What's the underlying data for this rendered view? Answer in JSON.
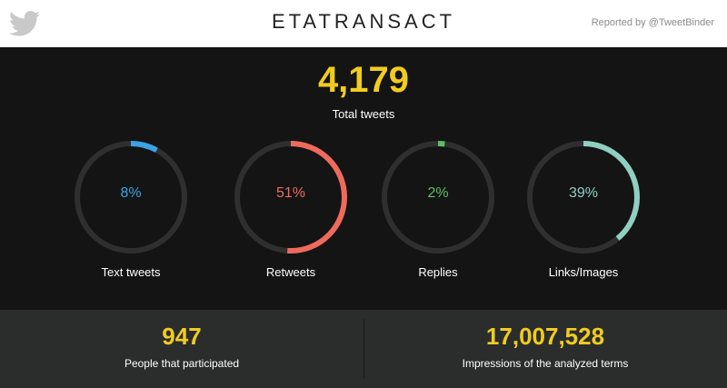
{
  "header": {
    "title": "ETATRANSACT",
    "reported_by": "Reported by @TweetBinder",
    "logo_icon": "twitter-bird-icon"
  },
  "total": {
    "value": "4,179",
    "label": "Total tweets"
  },
  "rings": [
    {
      "label": "Text tweets",
      "percent_text": "8%",
      "percent": 8,
      "color": "#3aa3e3"
    },
    {
      "label": "Retweets",
      "percent_text": "51%",
      "percent": 51,
      "color": "#ef6a5c"
    },
    {
      "label": "Replies",
      "percent_text": "2%",
      "percent": 2,
      "color": "#5cbf62"
    },
    {
      "label": "Links/Images",
      "percent_text": "39%",
      "percent": 39,
      "color": "#8fcfc2"
    }
  ],
  "stats": [
    {
      "value": "947",
      "label": "People that participated"
    },
    {
      "value": "17,007,528",
      "label": "Impressions of the analyzed terms"
    }
  ],
  "colors": {
    "accent_yellow": "#f1cc1f",
    "ring_track": "#2f2f2f",
    "background": "#141414",
    "footer_background": "#2b2d2d"
  }
}
